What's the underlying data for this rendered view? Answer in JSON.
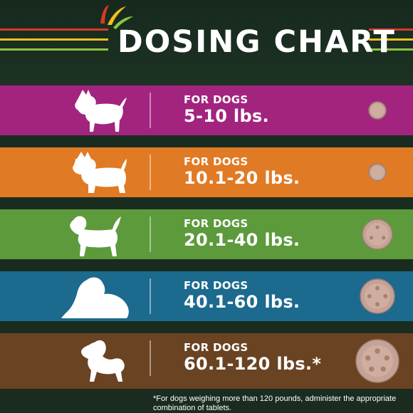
{
  "header": {
    "title": "DOSING CHART",
    "stripe_colors": [
      "#d63a26",
      "#f2c01d",
      "#8cc63f"
    ]
  },
  "rows": [
    {
      "line1": "FOR DOGS",
      "line2": "5-10 lbs.",
      "color": "#a3247f",
      "dog_icon": "small-terrier-icon",
      "tablet_size": "small"
    },
    {
      "line1": "FOR DOGS",
      "line2": "10.1-20 lbs.",
      "color": "#e07a24",
      "dog_icon": "terrier-icon",
      "tablet_size": "small"
    },
    {
      "line1": "FOR DOGS",
      "line2": "20.1-40 lbs.",
      "color": "#5c9a3b",
      "dog_icon": "beagle-icon",
      "tablet_size": "medium"
    },
    {
      "line1": "FOR DOGS",
      "line2": "40.1-60 lbs.",
      "color": "#1c6a8e",
      "dog_icon": "sheepdog-icon",
      "tablet_size": "large"
    },
    {
      "line1": "FOR DOGS",
      "line2": "60.1-120 lbs.*",
      "color": "#6a4322",
      "dog_icon": "large-dog-icon",
      "tablet_size": "extra-large"
    }
  ],
  "footnote": "*For dogs weighing more than 120 pounds, administer the appropriate combination of tablets."
}
